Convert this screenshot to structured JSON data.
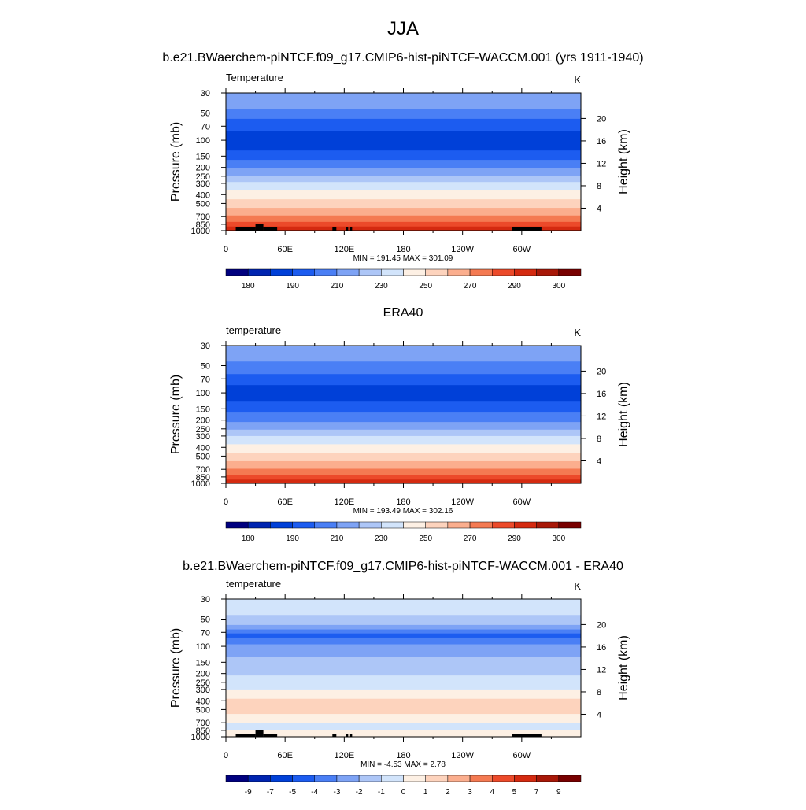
{
  "page": {
    "title": "JJA"
  },
  "colors": {
    "temperature_levels": [
      "#00007f",
      "#0024b0",
      "#0040d8",
      "#1c5cf0",
      "#4a7ff5",
      "#7ea3f5",
      "#adc6f7",
      "#d2e4fb",
      "#fdf0e4",
      "#fdd3bd",
      "#fbae8e",
      "#f47a52",
      "#ec4a2a",
      "#d42a10",
      "#a81808",
      "#780000"
    ],
    "difference_levels": [
      "#00007f",
      "#0024b0",
      "#0040d8",
      "#1c5cf0",
      "#4a7ff5",
      "#7ea3f5",
      "#adc6f7",
      "#d2e4fb",
      "#fdf0e4",
      "#fdd3bd",
      "#fbae8e",
      "#f47a52",
      "#ec4a2a",
      "#d42a10",
      "#a81808",
      "#780000"
    ],
    "land": "#000000"
  },
  "chart_data": [
    {
      "type": "heatmap",
      "title": "b.e21.BWaerchem-piNTCF.f09_g17.CMIP6-hist-piNTCF-WACCM.001 (yrs 1911-1940)",
      "left_string": "Temperature",
      "right_string": "K",
      "ylabel": "Pressure (mb)",
      "y2label": "Height (km)",
      "x_ticks": [
        "0",
        "60E",
        "120E",
        "180",
        "120W",
        "60W"
      ],
      "x_range": [
        0,
        360
      ],
      "y_ticks": [
        "30",
        "50",
        "70",
        "100",
        "150",
        "200",
        "250",
        "300",
        "400",
        "500",
        "700",
        "850",
        "1000"
      ],
      "y_range_mb": [
        1000,
        30
      ],
      "y2_ticks": [
        "4",
        "8",
        "12",
        "16",
        "20"
      ],
      "stats": "MIN = 191.45  MAX = 301.09",
      "legend_labels": [
        "180",
        "190",
        "210",
        "230",
        "250",
        "270",
        "290",
        "300"
      ],
      "bands_top_to_bottom": [
        5,
        4,
        3,
        2,
        3,
        4,
        5,
        6,
        7,
        8,
        9,
        10,
        11,
        12,
        13
      ],
      "band_bounds_mb": [
        30,
        45,
        58,
        80,
        130,
        165,
        205,
        250,
        290,
        360,
        450,
        560,
        680,
        800,
        900,
        1000
      ],
      "land_mask_lon": [
        [
          10,
          30
        ],
        [
          30,
          38
        ],
        [
          38,
          52
        ],
        [
          108,
          112
        ],
        [
          122,
          124
        ],
        [
          126,
          128
        ],
        [
          290,
          320
        ]
      ]
    },
    {
      "type": "heatmap",
      "title": "ERA40",
      "left_string": "temperature",
      "right_string": "K",
      "ylabel": "Pressure (mb)",
      "y2label": "Height (km)",
      "x_ticks": [
        "0",
        "60E",
        "120E",
        "180",
        "120W",
        "60W"
      ],
      "x_range": [
        0,
        360
      ],
      "y_ticks": [
        "30",
        "50",
        "70",
        "100",
        "150",
        "200",
        "250",
        "300",
        "400",
        "500",
        "700",
        "850",
        "1000"
      ],
      "y_range_mb": [
        1000,
        30
      ],
      "y2_ticks": [
        "4",
        "8",
        "12",
        "16",
        "20"
      ],
      "stats": "MIN = 193.49  MAX = 302.16",
      "legend_labels": [
        "180",
        "190",
        "210",
        "230",
        "250",
        "270",
        "290",
        "300"
      ],
      "bands_top_to_bottom": [
        5,
        4,
        3,
        2,
        3,
        4,
        5,
        6,
        7,
        8,
        9,
        10,
        11,
        12,
        13
      ],
      "band_bounds_mb": [
        30,
        45,
        62,
        82,
        125,
        165,
        210,
        255,
        300,
        370,
        460,
        570,
        690,
        810,
        910,
        1000
      ],
      "land_mask_lon": []
    },
    {
      "type": "heatmap",
      "title": "b.e21.BWaerchem-piNTCF.f09_g17.CMIP6-hist-piNTCF-WACCM.001 - ERA40",
      "left_string": "temperature",
      "right_string": "K",
      "ylabel": "Pressure (mb)",
      "y2label": "Height (km)",
      "x_ticks": [
        "0",
        "60E",
        "120E",
        "180",
        "120W",
        "60W"
      ],
      "x_range": [
        0,
        360
      ],
      "y_ticks": [
        "30",
        "50",
        "70",
        "100",
        "150",
        "200",
        "250",
        "300",
        "400",
        "500",
        "700",
        "850",
        "1000"
      ],
      "y_range_mb": [
        1000,
        30
      ],
      "y2_ticks": [
        "4",
        "8",
        "12",
        "16",
        "20"
      ],
      "stats": "MIN =  -4.53  MAX =   2.78",
      "legend_labels": [
        "-9",
        "-7",
        "-5",
        "-4",
        "-3",
        "-2",
        "-1",
        "0",
        "1",
        "2",
        "3",
        "4",
        "5",
        "7",
        "9"
      ],
      "bands_top_to_bottom": [
        7,
        6,
        5,
        4,
        3,
        4,
        5,
        6,
        7,
        8,
        9,
        8,
        7,
        8
      ],
      "band_bounds_mb": [
        30,
        45,
        58,
        65,
        72,
        80,
        95,
        130,
        210,
        300,
        380,
        560,
        700,
        850,
        1000
      ],
      "land_mask_lon": [
        [
          10,
          30
        ],
        [
          30,
          38
        ],
        [
          38,
          52
        ],
        [
          108,
          112
        ],
        [
          122,
          124
        ],
        [
          126,
          128
        ],
        [
          290,
          320
        ]
      ]
    }
  ]
}
